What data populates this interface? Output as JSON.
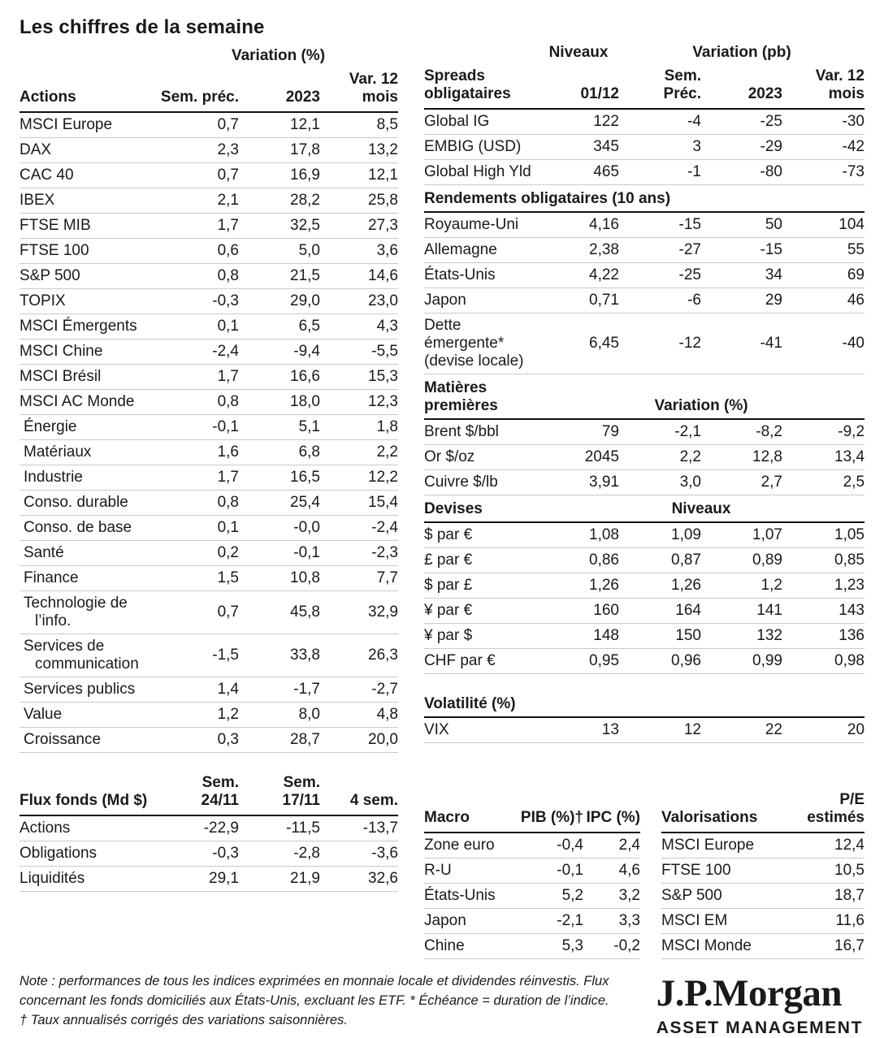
{
  "title": "Les chiffres de la semaine",
  "colors": {
    "text": "#1a1a1a",
    "rule_heavy": "#111111",
    "rule_light": "#c9c9c9",
    "background": "#ffffff"
  },
  "actions": {
    "group_header": "Variation (%)",
    "label_header": "Actions",
    "columns": [
      "Sem. préc.",
      "2023",
      "Var. 12\nmois"
    ],
    "rows": [
      {
        "label": "MSCI Europe",
        "values": [
          "0,7",
          "12,1",
          "8,5"
        ]
      },
      {
        "label": "DAX",
        "values": [
          "2,3",
          "17,8",
          "13,2"
        ]
      },
      {
        "label": "CAC 40",
        "values": [
          "0,7",
          "16,9",
          "12,1"
        ]
      },
      {
        "label": "IBEX",
        "values": [
          "2,1",
          "28,2",
          "25,8"
        ]
      },
      {
        "label": "FTSE MIB",
        "values": [
          "1,7",
          "32,5",
          "27,3"
        ]
      },
      {
        "label": "FTSE 100",
        "values": [
          "0,6",
          "5,0",
          "3,6"
        ]
      },
      {
        "label": "S&P 500",
        "values": [
          "0,8",
          "21,5",
          "14,6"
        ]
      },
      {
        "label": "TOPIX",
        "values": [
          "-0,3",
          "29,0",
          "23,0"
        ]
      },
      {
        "label": "MSCI Émergents",
        "values": [
          "0,1",
          "6,5",
          "4,3"
        ]
      },
      {
        "label": "MSCI Chine",
        "values": [
          "-2,4",
          "-9,4",
          "-5,5"
        ]
      },
      {
        "label": "MSCI Brésil",
        "values": [
          "1,7",
          "16,6",
          "15,3"
        ]
      },
      {
        "label": "MSCI AC Monde",
        "values": [
          "0,8",
          "18,0",
          "12,3"
        ]
      },
      {
        "label": "Énergie",
        "indent": true,
        "values": [
          "-0,1",
          "5,1",
          "1,8"
        ]
      },
      {
        "label": "Matériaux",
        "indent": true,
        "values": [
          "1,6",
          "6,8",
          "2,2"
        ]
      },
      {
        "label": "Industrie",
        "indent": true,
        "values": [
          "1,7",
          "16,5",
          "12,2"
        ]
      },
      {
        "label": "Conso. durable",
        "indent": true,
        "values": [
          "0,8",
          "25,4",
          "15,4"
        ]
      },
      {
        "label": "Conso. de base",
        "indent": true,
        "values": [
          "0,1",
          "-0,0",
          "-2,4"
        ]
      },
      {
        "label": "Santé",
        "indent": true,
        "values": [
          "0,2",
          "-0,1",
          "-2,3"
        ]
      },
      {
        "label": "Finance",
        "indent": true,
        "values": [
          "1,5",
          "10,8",
          "7,7"
        ]
      },
      {
        "label": "Technologie de l’info.",
        "indent": true,
        "values": [
          "0,7",
          "45,8",
          "32,9"
        ]
      },
      {
        "label": "Services de communication",
        "indent": true,
        "values": [
          "-1,5",
          "33,8",
          "26,3"
        ]
      },
      {
        "label": "Services publics",
        "indent": true,
        "values": [
          "1,4",
          "-1,7",
          "-2,7"
        ]
      },
      {
        "label": "Value",
        "indent": true,
        "values": [
          "1,2",
          "8,0",
          "4,8"
        ]
      },
      {
        "label": "Croissance",
        "indent": true,
        "values": [
          "0,3",
          "28,7",
          "20,0"
        ]
      }
    ]
  },
  "flux": {
    "label_header": "Flux fonds (Md $)",
    "columns": [
      "Sem.\n24/11",
      "Sem.\n17/11",
      "4 sem."
    ],
    "rows": [
      {
        "label": "Actions",
        "values": [
          "-22,9",
          "-11,5",
          "-13,7"
        ]
      },
      {
        "label": "Obligations",
        "values": [
          "-0,3",
          "-2,8",
          "-3,6"
        ]
      },
      {
        "label": "Liquidités",
        "values": [
          "29,1",
          "21,9",
          "32,6"
        ]
      }
    ]
  },
  "spreads": {
    "group_niveaux": "Niveaux",
    "group_variation": "Variation (pb)",
    "label_header": "Spreads\nobligataires",
    "columns": [
      "01/12",
      "Sem.\nPréc.",
      "2023",
      "Var. 12\nmois"
    ],
    "rows": [
      {
        "label": "Global IG",
        "values": [
          "122",
          "-4",
          "-25",
          "-30"
        ]
      },
      {
        "label": "EMBIG (USD)",
        "values": [
          "345",
          "3",
          "-29",
          "-42"
        ]
      },
      {
        "label": "Global High Yld",
        "values": [
          "465",
          "-1",
          "-80",
          "-73"
        ]
      }
    ]
  },
  "rendements": {
    "section_header": "Rendements obligataires (10 ans)",
    "rows": [
      {
        "label": "Royaume-Uni",
        "values": [
          "4,16",
          "-15",
          "50",
          "104"
        ]
      },
      {
        "label": "Allemagne",
        "values": [
          "2,38",
          "-27",
          "-15",
          "55"
        ]
      },
      {
        "label": "États-Unis",
        "values": [
          "4,22",
          "-25",
          "34",
          "69"
        ]
      },
      {
        "label": "Japon",
        "values": [
          "0,71",
          "-6",
          "29",
          "46"
        ]
      },
      {
        "label": "Dette émergente*\n(devise locale)",
        "values": [
          "6,45",
          "-12",
          "-41",
          "-40"
        ]
      }
    ]
  },
  "matieres": {
    "section_header": "Matières premières",
    "group_header": "Variation (%)",
    "rows": [
      {
        "label": "Brent $/bbl",
        "values": [
          "79",
          "-2,1",
          "-8,2",
          "-9,2"
        ]
      },
      {
        "label": "Or $/oz",
        "values": [
          "2045",
          "2,2",
          "12,8",
          "13,4"
        ]
      },
      {
        "label": "Cuivre $/lb",
        "values": [
          "3,91",
          "3,0",
          "2,7",
          "2,5"
        ]
      }
    ]
  },
  "devises": {
    "section_header": "Devises",
    "group_header": "Niveaux",
    "rows": [
      {
        "label": "$ par €",
        "values": [
          "1,08",
          "1,09",
          "1,07",
          "1,05"
        ]
      },
      {
        "label": "£ par €",
        "values": [
          "0,86",
          "0,87",
          "0,89",
          "0,85"
        ]
      },
      {
        "label": "$ par £",
        "values": [
          "1,26",
          "1,26",
          "1,2",
          "1,23"
        ]
      },
      {
        "label": "¥ par €",
        "values": [
          "160",
          "164",
          "141",
          "143"
        ]
      },
      {
        "label": "¥ par $",
        "values": [
          "148",
          "150",
          "132",
          "136"
        ]
      },
      {
        "label": "CHF par €",
        "values": [
          "0,95",
          "0,96",
          "0,99",
          "0,98"
        ]
      }
    ]
  },
  "volatilite": {
    "section_header": "Volatilité (%)",
    "rows": [
      {
        "label": "VIX",
        "values": [
          "13",
          "12",
          "22",
          "20"
        ]
      }
    ]
  },
  "macro": {
    "label_header": "Macro",
    "columns": [
      "PIB (%)†",
      "IPC (%)"
    ],
    "rows": [
      {
        "label": "Zone euro",
        "values": [
          "-0,4",
          "2,4"
        ]
      },
      {
        "label": "R-U",
        "values": [
          "-0,1",
          "4,6"
        ]
      },
      {
        "label": "États-Unis",
        "values": [
          "5,2",
          "3,2"
        ]
      },
      {
        "label": "Japon",
        "values": [
          "-2,1",
          "3,3"
        ]
      },
      {
        "label": "Chine",
        "values": [
          "5,3",
          "-0,2"
        ]
      }
    ]
  },
  "valorisations": {
    "label_header": "Valorisations",
    "columns": [
      "P/E\nestimés"
    ],
    "rows": [
      {
        "label": "MSCI Europe",
        "values": [
          "12,4"
        ]
      },
      {
        "label": "FTSE 100",
        "values": [
          "10,5"
        ]
      },
      {
        "label": "S&P 500",
        "values": [
          "18,7"
        ]
      },
      {
        "label": "MSCI EM",
        "values": [
          "11,6"
        ]
      },
      {
        "label": "MSCI Monde",
        "values": [
          "16,7"
        ]
      }
    ]
  },
  "notes": {
    "p1": "Note : performances de tous les indices exprimées en monnaie locale et dividendes réinvestis. Flux concernant les fonds domiciliés aux États-Unis, excluant les ETF. * Échéance = duration de l’indice.",
    "p2": "† Taux annualisés corrigés des variations saisonnières."
  },
  "logo": {
    "brand": "J.P.Morgan",
    "division": "ASSET MANAGEMENT"
  }
}
